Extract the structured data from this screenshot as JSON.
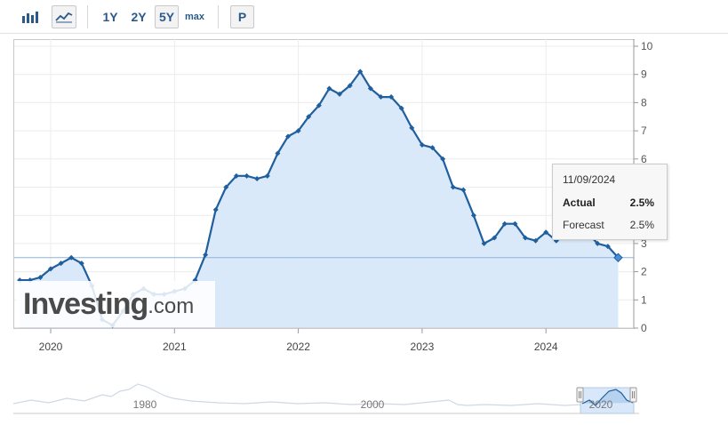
{
  "toolbar": {
    "bar_chart_icon": "bar-chart-icon",
    "area_chart_icon": "area-chart-icon",
    "ranges": [
      "1Y",
      "2Y",
      "5Y",
      "max"
    ],
    "selected_range": "5Y",
    "p_label": "P"
  },
  "chart_data": {
    "type": "line",
    "y_ticks": [
      "0",
      "1",
      "2",
      "3",
      "4",
      "5",
      "6",
      "7",
      "8",
      "9",
      "10"
    ],
    "x_ticks": [
      "2020",
      "2021",
      "2022",
      "2023",
      "2024"
    ],
    "ylim": [
      0,
      10
    ],
    "grid": true,
    "area_fill": true,
    "line_color": "#1f5f9e",
    "fill_color": "#d8e8fa",
    "reference_line": 2.5,
    "series": [
      {
        "x": [
          "2019-10",
          "2019-11",
          "2019-12",
          "2020-01",
          "2020-02",
          "2020-03",
          "2020-04",
          "2020-05",
          "2020-06",
          "2020-07",
          "2020-08",
          "2020-09",
          "2020-10",
          "2020-11",
          "2020-12",
          "2021-01",
          "2021-02",
          "2021-03",
          "2021-04",
          "2021-05",
          "2021-06",
          "2021-07",
          "2021-08",
          "2021-09",
          "2021-10",
          "2021-11",
          "2021-12",
          "2022-01",
          "2022-02",
          "2022-03",
          "2022-04",
          "2022-05",
          "2022-06",
          "2022-07",
          "2022-08",
          "2022-09",
          "2022-10",
          "2022-11",
          "2022-12",
          "2023-01",
          "2023-02",
          "2023-03",
          "2023-04",
          "2023-05",
          "2023-06",
          "2023-07",
          "2023-08",
          "2023-09",
          "2023-10",
          "2023-11",
          "2023-12",
          "2024-01",
          "2024-02",
          "2024-03",
          "2024-04",
          "2024-05",
          "2024-06",
          "2024-07",
          "2024-08"
        ],
        "values": [
          1.7,
          1.7,
          1.8,
          2.1,
          2.3,
          2.5,
          2.3,
          1.5,
          0.3,
          0.1,
          0.6,
          1.2,
          1.4,
          1.2,
          1.2,
          1.3,
          1.4,
          1.7,
          2.6,
          4.2,
          5.0,
          5.4,
          5.4,
          5.3,
          5.4,
          6.2,
          6.8,
          7.0,
          7.5,
          7.9,
          8.5,
          8.3,
          8.6,
          9.1,
          8.5,
          8.2,
          8.2,
          7.8,
          7.1,
          6.5,
          6.4,
          6.0,
          5.0,
          4.9,
          4.0,
          3.0,
          3.2,
          3.7,
          3.7,
          3.2,
          3.1,
          3.4,
          3.1,
          3.3,
          3.4,
          3.4,
          3.0,
          2.9,
          2.5
        ]
      }
    ]
  },
  "tooltip": {
    "date": "11/09/2024",
    "actual_label": "Actual",
    "actual_value": "2.5%",
    "forecast_label": "Forecast",
    "forecast_value": "2.5%"
  },
  "watermark": {
    "brand": "Investing",
    "suffix": ".com"
  },
  "navigator": {
    "labels": [
      "1980",
      "2000",
      "2020"
    ]
  }
}
